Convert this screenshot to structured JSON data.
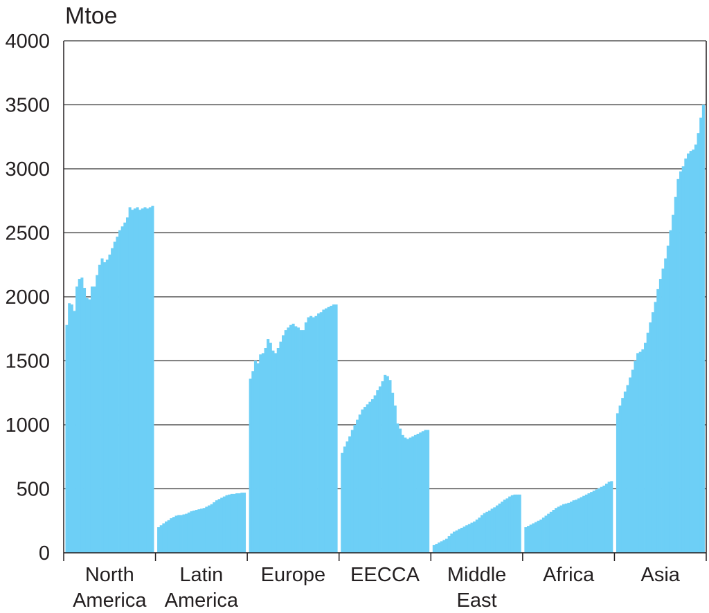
{
  "chart_data": {
    "type": "bar",
    "ylabel": "Mtoe",
    "color": "#6dcff6",
    "groups": [
      {
        "name": "North America",
        "values": [
          1780,
          1950,
          1940,
          1890,
          2080,
          2140,
          2150,
          2070,
          1990,
          1980,
          2080,
          2080,
          2170,
          2250,
          2300,
          2270,
          2290,
          2330,
          2380,
          2430,
          2470,
          2520,
          2550,
          2580,
          2620,
          2700,
          2680,
          2690,
          2700,
          2680,
          2690,
          2700,
          2690,
          2700,
          2710
        ]
      },
      {
        "name": "Latin America",
        "values": [
          200,
          215,
          230,
          245,
          255,
          270,
          280,
          290,
          295,
          295,
          300,
          305,
          315,
          325,
          330,
          335,
          340,
          345,
          350,
          360,
          370,
          380,
          395,
          410,
          420,
          430,
          440,
          450,
          455,
          460,
          460,
          465,
          465,
          470,
          470
        ]
      },
      {
        "name": "Europe",
        "values": [
          1360,
          1420,
          1500,
          1480,
          1550,
          1560,
          1600,
          1670,
          1640,
          1580,
          1560,
          1600,
          1650,
          1700,
          1740,
          1760,
          1780,
          1790,
          1770,
          1760,
          1740,
          1740,
          1800,
          1840,
          1850,
          1840,
          1850,
          1870,
          1880,
          1900,
          1910,
          1920,
          1930,
          1940,
          1940
        ]
      },
      {
        "name": "EECCA",
        "values": [
          780,
          830,
          870,
          910,
          960,
          1000,
          1040,
          1080,
          1120,
          1140,
          1160,
          1180,
          1200,
          1230,
          1270,
          1300,
          1340,
          1390,
          1380,
          1350,
          1250,
          1150,
          1010,
          970,
          920,
          900,
          890,
          900,
          910,
          920,
          930,
          940,
          950,
          960,
          960
        ]
      },
      {
        "name": "Middle East",
        "values": [
          60,
          70,
          80,
          90,
          100,
          110,
          130,
          150,
          165,
          175,
          185,
          195,
          205,
          215,
          225,
          235,
          245,
          260,
          275,
          295,
          310,
          320,
          330,
          345,
          355,
          370,
          385,
          400,
          415,
          425,
          440,
          450,
          455,
          455,
          455
        ]
      },
      {
        "name": "Africa",
        "values": [
          200,
          210,
          220,
          230,
          240,
          250,
          260,
          275,
          290,
          305,
          320,
          335,
          350,
          360,
          370,
          380,
          385,
          390,
          400,
          410,
          415,
          425,
          435,
          445,
          455,
          465,
          475,
          485,
          495,
          505,
          515,
          525,
          540,
          555,
          560
        ]
      },
      {
        "name": "Asia",
        "values": [
          1090,
          1150,
          1210,
          1260,
          1310,
          1370,
          1430,
          1500,
          1560,
          1570,
          1590,
          1640,
          1720,
          1800,
          1880,
          1960,
          2060,
          2140,
          2220,
          2300,
          2400,
          2520,
          2640,
          2780,
          2920,
          2980,
          3020,
          3080,
          3120,
          3140,
          3150,
          3190,
          3280,
          3400,
          3500
        ]
      }
    ],
    "ylim": [
      0,
      4000
    ],
    "yticks": [
      0,
      500,
      1000,
      1500,
      2000,
      2500,
      3000,
      3500,
      4000
    ],
    "grid": true
  }
}
